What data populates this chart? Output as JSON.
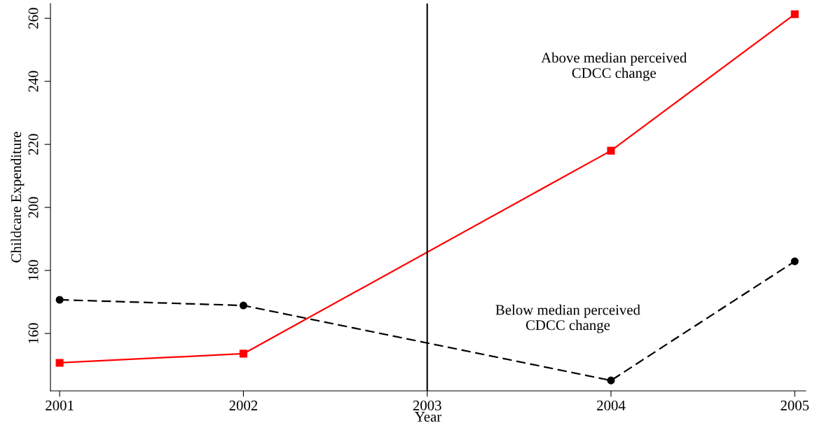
{
  "chart_data": {
    "type": "line",
    "xlabel": "Year",
    "ylabel": "Childcare Expenditure",
    "x": [
      2001,
      2002,
      2004,
      2005
    ],
    "series": [
      {
        "color": "#ff0000",
        "values": [
          150.7,
          153.6,
          218,
          261.3
        ],
        "marker": "square",
        "line_style": "solid"
      },
      {
        "color": "#000000",
        "values": [
          170.7,
          168.9,
          145.1,
          182.9
        ],
        "marker": "circle",
        "line_style": "dashed"
      }
    ],
    "xlim": [
      2000.95,
      2005.06
    ],
    "xticks": [
      2001,
      2002,
      2003,
      2004,
      2005
    ],
    "ylim": [
      141.8,
      264.7
    ],
    "yticks": [
      160,
      180,
      200,
      220,
      240,
      260
    ],
    "ref_lines": [
      {
        "axis": "x",
        "value": 2003,
        "color": "#000000",
        "line_style": "solid"
      }
    ],
    "annotations": [
      "Above median perceived\nCDCC change",
      "Below median perceived\nCDCC change"
    ],
    "grid": false,
    "legend": false
  }
}
